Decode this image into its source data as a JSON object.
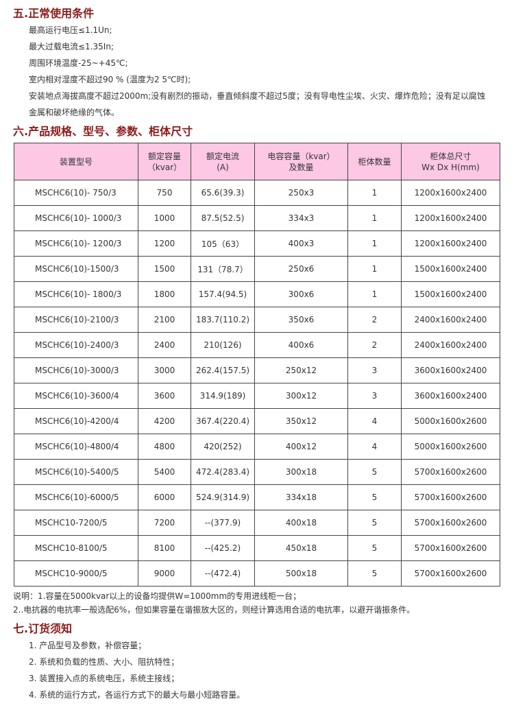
{
  "section5": {
    "title": "五.正常使用条件",
    "lines": [
      "最高运行电压≤1.1Un;",
      "最大过载电流≤1.35In;",
      "周围环境温度-25~+45℃;",
      "室内相对湿度不超过90 % (温度为2 5℃时);",
      "安装地点海拔高度不超过2000m;没有剧烈的振动，垂直倾斜度不超过5度；没有导电性尘埃、火灾、爆炸危险；没有足以腐蚀",
      "金属和破坏绝缘的气体。"
    ]
  },
  "section6": {
    "title": "六.产品规格、型号、参数、柜体尺寸",
    "headers": [
      [
        "装置型号",
        ""
      ],
      [
        "额定容量",
        "（kvar）"
      ],
      [
        "额定电流",
        "(A)"
      ],
      [
        "电容容量（kvar）",
        "及数量"
      ],
      [
        "柜体数量",
        ""
      ],
      [
        "柜体总尺寸",
        "Wx Dx H(mm)"
      ]
    ],
    "rows": [
      [
        "MSCHC6(10)- 750/3",
        "750",
        "65.6(39.3)",
        "250x3",
        "1",
        "1200x1600x2400"
      ],
      [
        "MSCHC6(10)- 1000/3",
        "1000",
        "87.5(52.5)",
        "334x3",
        "1",
        "1200x1600x2400"
      ],
      [
        "MSCHC6(10)- 1200/3",
        "1200",
        "105（63）",
        "400x3",
        "1",
        "1200x1600x2400"
      ],
      [
        "MSCHC6(10)-1500/3",
        "1500",
        "131（78.7）",
        "250x6",
        "1",
        "1500x1600x2400"
      ],
      [
        "MSCHC6(10)- 1800/3",
        "1800",
        "157.4(94.5)",
        "300x6",
        "1",
        "1500x1600x2400"
      ],
      [
        "MSCHC6(10)-2100/3",
        "2100",
        "183.7(110.2)",
        "350x6",
        "2",
        "2400x1600x2400"
      ],
      [
        "MSCHC6(10)-2400/3",
        "2400",
        "210(126)",
        "400x6",
        "2",
        "2400x1600x2400"
      ],
      [
        "MSCHC6(10)-3000/3",
        "3000",
        "262.4(157.5)",
        "250x12",
        "3",
        "3600x1600x2400"
      ],
      [
        "MSCHC6(10)-3600/4",
        "3600",
        "314.9(189)",
        "300x12",
        "3",
        "3600x1600x2400"
      ],
      [
        "MSCHC6(10)-4200/4",
        "4200",
        "367.4(220.4)",
        "350x12",
        "4",
        "5000x1600x2600"
      ],
      [
        "MSCHC6(10)-4800/4",
        "4800",
        "420(252)",
        "400x12",
        "4",
        "5000x1600x2600"
      ],
      [
        "MSCHC6(10)-5400/5",
        "5400",
        "472.4(283.4)",
        "300x18",
        "5",
        "5700x1600x2600"
      ],
      [
        "MSCHC6(10)-6000/5",
        "6000",
        "524.9(314.9)",
        "334x18",
        "5",
        "5700x1600x2600"
      ],
      [
        "MSCHC10-7200/5",
        "7200",
        "--(377.9)",
        "400x18",
        "5",
        "5700x1600x2600"
      ],
      [
        "MSCHC10-8100/5",
        "8100",
        "--(425.2)",
        "450x18",
        "5",
        "5700x1600x2600"
      ],
      [
        "MSCHC10-9000/5",
        "9000",
        "--(472.4)",
        "500x18",
        "5",
        "5700x1600x2600"
      ]
    ],
    "notes": [
      "说明：1.容量在5000kvar以上的设备均提供W=1000mm的专用进线柜一台；",
      "2..电抗器的电抗率一般选配6%，但如果容量在谐振放大区的，则经计算选用合适的电抗率，以避开谐振条件。"
    ]
  },
  "section7": {
    "title": "七.订货须知",
    "lines": [
      "1.  产品型号及参数，补偿容量；",
      "2.  系统和负载的性质、大小、阻抗特性；",
      "3.  装置接入点的系统电压，系统主接线；",
      "4.  系统的运行方式，各运行方式下的最大与最小短路容量。"
    ]
  }
}
